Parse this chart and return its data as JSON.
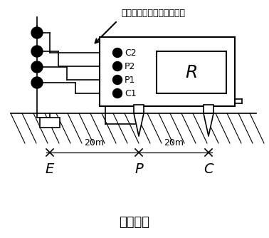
{
  "title": "图（一）",
  "annotation": "与被保护的电气设备断开！",
  "labels_bottom": [
    "E",
    "P",
    "C"
  ],
  "labels_distance": [
    "20m",
    "20m"
  ],
  "terminal_labels": [
    "C2",
    "P2",
    "P1",
    "C1"
  ],
  "meter_label": "R",
  "bg_color": "#ffffff",
  "line_color": "#000000"
}
